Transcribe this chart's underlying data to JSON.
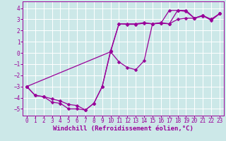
{
  "background_color": "#cce8e8",
  "grid_color": "#aadddd",
  "line_color": "#990099",
  "xlabel": "Windchill (Refroidissement éolien,°C)",
  "xlim": [
    -0.5,
    23.5
  ],
  "ylim": [
    -5.6,
    4.6
  ],
  "yticks": [
    -5,
    -4,
    -3,
    -2,
    -1,
    0,
    1,
    2,
    3,
    4
  ],
  "xticks": [
    0,
    1,
    2,
    3,
    4,
    5,
    6,
    7,
    8,
    9,
    10,
    11,
    12,
    13,
    14,
    15,
    16,
    17,
    18,
    19,
    20,
    21,
    22,
    23
  ],
  "line1_x": [
    0,
    1,
    2,
    3,
    4,
    5,
    6,
    7,
    8,
    9,
    10,
    11,
    12,
    13,
    14,
    15,
    16,
    17,
    18,
    19,
    20,
    21,
    22,
    23
  ],
  "line1_y": [
    -3.0,
    -3.8,
    -3.9,
    -4.4,
    -4.5,
    -5.0,
    -5.0,
    -5.1,
    -4.5,
    -3.0,
    0.2,
    2.6,
    2.6,
    2.6,
    2.7,
    2.6,
    2.7,
    2.6,
    3.8,
    3.8,
    3.1,
    3.3,
    3.0,
    3.5
  ],
  "line2_x": [
    0,
    10,
    11,
    12,
    13,
    14,
    15,
    16,
    17,
    18,
    19,
    20,
    21,
    22,
    23
  ],
  "line2_y": [
    -3.0,
    0.1,
    2.6,
    2.55,
    2.55,
    2.65,
    2.6,
    2.65,
    3.8,
    3.8,
    3.7,
    3.1,
    3.35,
    3.0,
    3.5
  ],
  "line3_x": [
    0,
    1,
    2,
    3,
    4,
    5,
    6,
    7,
    8,
    9,
    10,
    11,
    12,
    13,
    14,
    15,
    16,
    17,
    18,
    19,
    20,
    21,
    22,
    23
  ],
  "line3_y": [
    -3.0,
    -3.8,
    -3.9,
    -4.1,
    -4.3,
    -4.6,
    -4.7,
    -5.1,
    -4.5,
    -3.0,
    0.1,
    -0.8,
    -1.3,
    -1.5,
    -0.7,
    2.6,
    2.65,
    2.6,
    3.0,
    3.1,
    3.1,
    3.35,
    2.9,
    3.5
  ],
  "markersize": 2.5,
  "linewidth": 0.9,
  "xlabel_fontsize": 6.5,
  "tick_fontsize": 5.5
}
